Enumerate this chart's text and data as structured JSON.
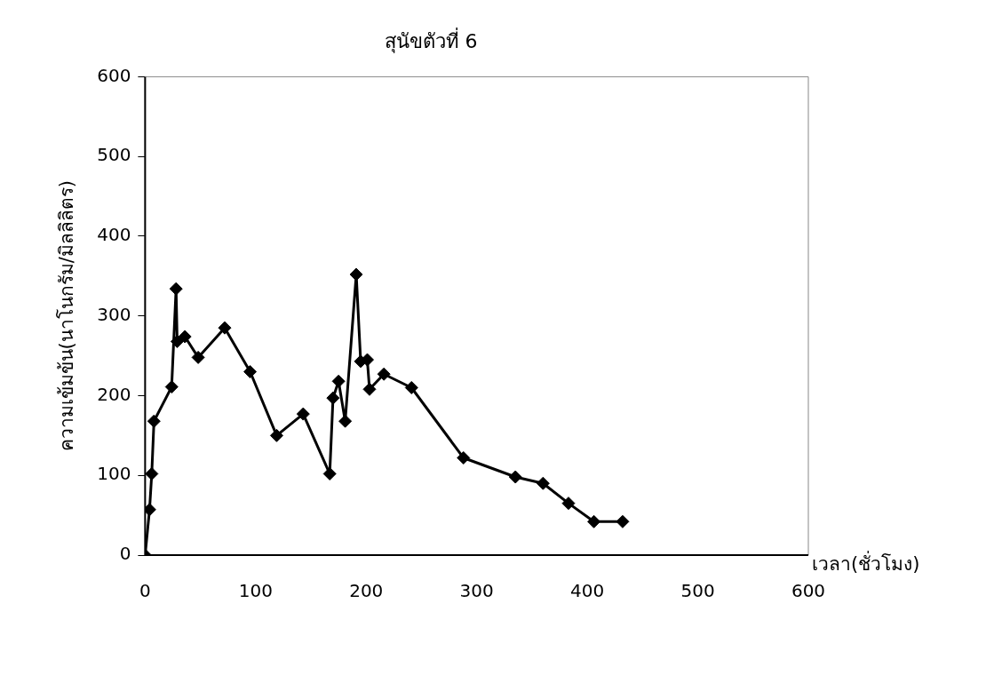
{
  "chart_data": {
    "type": "line",
    "title": "สุนัขตัวที่ 6",
    "xlabel": "เวลา(ชั่วโมง)",
    "ylabel": "ความเข้มข้น(นาโนกรัม/มิลลิลิตร)",
    "x": [
      0,
      4,
      6,
      8,
      24,
      28,
      29,
      36,
      48,
      72,
      95,
      119,
      143,
      167,
      170,
      175,
      181,
      191,
      195,
      201,
      203,
      216,
      241,
      288,
      335,
      360,
      383,
      406,
      432
    ],
    "series": [
      {
        "color": "#000000",
        "values": [
          0,
          57,
          102,
          168,
          211,
          334,
          268,
          274,
          248,
          285,
          230,
          150,
          177,
          102,
          197,
          218,
          168,
          352,
          243,
          245,
          208,
          227,
          210,
          122,
          98,
          90,
          65,
          42,
          42
        ]
      }
    ],
    "xlim": [
      0,
      600
    ],
    "xticks": [
      0,
      100,
      200,
      300,
      400,
      500,
      600
    ],
    "ylim": [
      0,
      600
    ],
    "yticks": [
      0,
      100,
      200,
      300,
      400,
      500,
      600
    ],
    "grid": false,
    "legend": false,
    "marker": "diamond",
    "line_style": "solid"
  }
}
